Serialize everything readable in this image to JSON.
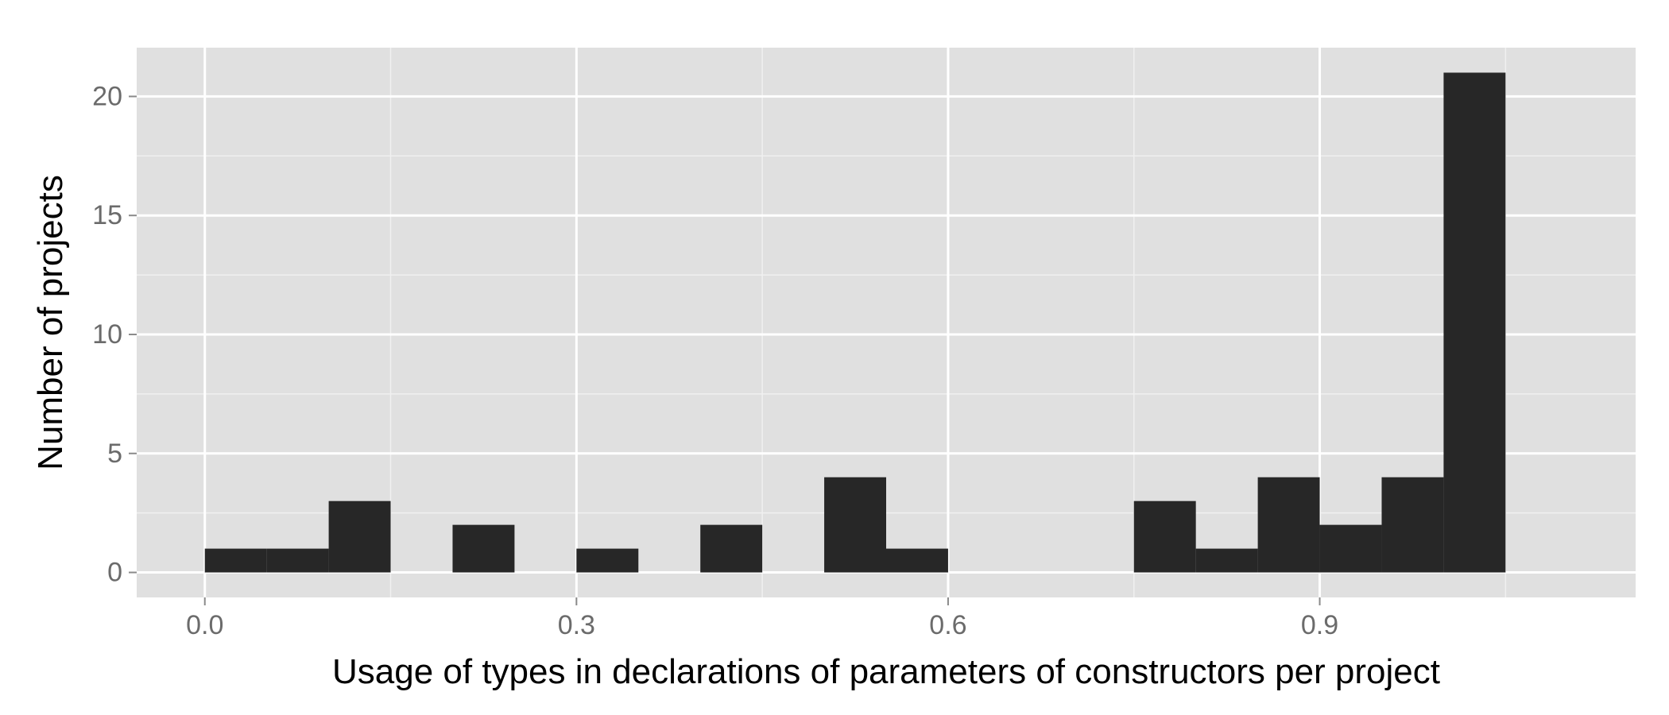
{
  "chart_data": {
    "type": "bar",
    "subtype": "histogram",
    "xlabel": "Usage of types in declarations of parameters of constructors per project",
    "ylabel": "Number of projects",
    "xlim": [
      -0.055,
      1.155
    ],
    "ylim": [
      -1.05,
      22.05
    ],
    "x_ticks": [
      0.0,
      0.3,
      0.6,
      0.9
    ],
    "x_tick_labels": [
      "0.0",
      "0.3",
      "0.6",
      "0.9"
    ],
    "y_ticks": [
      0,
      5,
      10,
      15,
      20
    ],
    "y_tick_labels": [
      "0",
      "5",
      "10",
      "15",
      "20"
    ],
    "x_minor_ticks": [
      0.15,
      0.45,
      0.75,
      1.05
    ],
    "y_minor_ticks": [
      2.5,
      7.5,
      12.5,
      17.5
    ],
    "bin_width": 0.05,
    "bins": [
      {
        "x": 0.0,
        "count": 1
      },
      {
        "x": 0.05,
        "count": 1
      },
      {
        "x": 0.1,
        "count": 3
      },
      {
        "x": 0.15,
        "count": 0
      },
      {
        "x": 0.2,
        "count": 2
      },
      {
        "x": 0.25,
        "count": 0
      },
      {
        "x": 0.3,
        "count": 1
      },
      {
        "x": 0.35,
        "count": 0
      },
      {
        "x": 0.4,
        "count": 2
      },
      {
        "x": 0.45,
        "count": 0
      },
      {
        "x": 0.5,
        "count": 4
      },
      {
        "x": 0.55,
        "count": 1
      },
      {
        "x": 0.6,
        "count": 0
      },
      {
        "x": 0.65,
        "count": 0
      },
      {
        "x": 0.7,
        "count": 0
      },
      {
        "x": 0.75,
        "count": 3
      },
      {
        "x": 0.8,
        "count": 1
      },
      {
        "x": 0.85,
        "count": 4
      },
      {
        "x": 0.9,
        "count": 2
      },
      {
        "x": 0.95,
        "count": 4
      },
      {
        "x": 1.0,
        "count": 21
      }
    ],
    "grid": true,
    "legend": "none",
    "colors": {
      "panel": "#e0e0e0",
      "grid_major": "#ffffff",
      "grid_minor": "#f0f0f0",
      "bar": "#272727",
      "tick": "#8a8a8a"
    }
  }
}
